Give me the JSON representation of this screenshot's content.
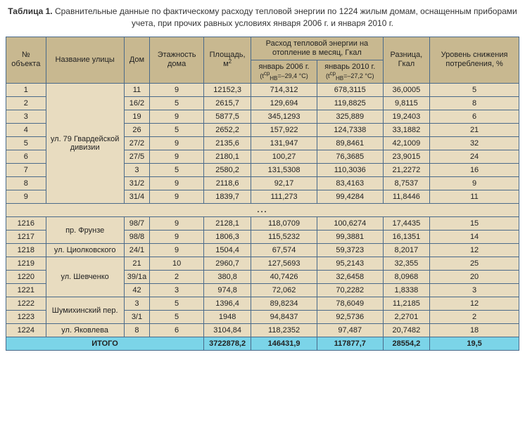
{
  "title_prefix": "Таблица 1.",
  "title_text": " Сравнительные данные по фактическому расходу тепловой энергии по 1224 жилым домам, оснащенным приборами учета, при прочих равных условиях января 2006 г. и января 2010 г.",
  "headers": {
    "obj_no": "№ объекта",
    "street": "Название улицы",
    "house": "Дом",
    "floors": "Этажность дома",
    "area": "Площадь, м",
    "area_sup": "2",
    "heat_group": "Расход тепловой энергии на отопление в месяц, Гкал",
    "jan2006": "январь 2006 г.",
    "jan2006_t": "(t",
    "jan2006_sup": "ср",
    "jan2006_sub": "НВ",
    "jan2006_val": "=–29,4 °С)",
    "jan2010": "январь 2010 г.",
    "jan2010_t": "(t",
    "jan2010_sup": "ср",
    "jan2010_sub": "НВ",
    "jan2010_val": "=–27,2 °С)",
    "diff": "Разница, Гкал",
    "reduction": "Уровень снижения потребления, %"
  },
  "street_groups": [
    {
      "name": "ул. 79 Гвардейской дивизии",
      "span": 9
    },
    {
      "name": "пр. Фрунзе",
      "span": 2
    },
    {
      "name": "ул. Циолковского",
      "span": 1
    },
    {
      "name": "ул. Шевченко",
      "span": 3
    },
    {
      "name": "Шумихинский пер.",
      "span": 2
    },
    {
      "name": "ул. Яковлева",
      "span": 1
    }
  ],
  "rows_top": [
    {
      "n": "1",
      "house": "11",
      "floors": "9",
      "area": "12152,3",
      "j06": "714,312",
      "j10": "678,3115",
      "diff": "36,0005",
      "pct": "5"
    },
    {
      "n": "2",
      "house": "16/2",
      "floors": "5",
      "area": "2615,7",
      "j06": "129,694",
      "j10": "119,8825",
      "diff": "9,8115",
      "pct": "8"
    },
    {
      "n": "3",
      "house": "19",
      "floors": "9",
      "area": "5877,5",
      "j06": "345,1293",
      "j10": "325,889",
      "diff": "19,2403",
      "pct": "6"
    },
    {
      "n": "4",
      "house": "26",
      "floors": "5",
      "area": "2652,2",
      "j06": "157,922",
      "j10": "124,7338",
      "diff": "33,1882",
      "pct": "21"
    },
    {
      "n": "5",
      "house": "27/2",
      "floors": "9",
      "area": "2135,6",
      "j06": "131,947",
      "j10": "89,8461",
      "diff": "42,1009",
      "pct": "32"
    },
    {
      "n": "6",
      "house": "27/5",
      "floors": "9",
      "area": "2180,1",
      "j06": "100,27",
      "j10": "76,3685",
      "diff": "23,9015",
      "pct": "24"
    },
    {
      "n": "7",
      "house": "3",
      "floors": "5",
      "area": "2580,2",
      "j06": "131,5308",
      "j10": "110,3036",
      "diff": "21,2272",
      "pct": "16"
    },
    {
      "n": "8",
      "house": "31/2",
      "floors": "9",
      "area": "2118,6",
      "j06": "92,17",
      "j10": "83,4163",
      "diff": "8,7537",
      "pct": "9"
    },
    {
      "n": "9",
      "house": "31/4",
      "floors": "9",
      "area": "1839,7",
      "j06": "111,273",
      "j10": "99,4284",
      "diff": "11,8446",
      "pct": "11"
    }
  ],
  "rows_bottom": [
    {
      "n": "1216",
      "house": "98/7",
      "floors": "9",
      "area": "2128,1",
      "j06": "118,0709",
      "j10": "100,6274",
      "diff": "17,4435",
      "pct": "15"
    },
    {
      "n": "1217",
      "house": "98/8",
      "floors": "9",
      "area": "1806,3",
      "j06": "115,5232",
      "j10": "99,3881",
      "diff": "16,1351",
      "pct": "14"
    },
    {
      "n": "1218",
      "house": "24/1",
      "floors": "9",
      "area": "1504,4",
      "j06": "67,574",
      "j10": "59,3723",
      "diff": "8,2017",
      "pct": "12"
    },
    {
      "n": "1219",
      "house": "21",
      "floors": "10",
      "area": "2960,7",
      "j06": "127,5693",
      "j10": "95,2143",
      "diff": "32,355",
      "pct": "25"
    },
    {
      "n": "1220",
      "house": "39/1а",
      "floors": "2",
      "area": "380,8",
      "j06": "40,7426",
      "j10": "32,6458",
      "diff": "8,0968",
      "pct": "20"
    },
    {
      "n": "1221",
      "house": "42",
      "floors": "3",
      "area": "974,8",
      "j06": "72,062",
      "j10": "70,2282",
      "diff": "1,8338",
      "pct": "3"
    },
    {
      "n": "1222",
      "house": "3",
      "floors": "5",
      "area": "1396,4",
      "j06": "89,8234",
      "j10": "78,6049",
      "diff": "11,2185",
      "pct": "12"
    },
    {
      "n": "1223",
      "house": "3/1",
      "floors": "5",
      "area": "1948",
      "j06": "94,8437",
      "j10": "92,5736",
      "diff": "2,2701",
      "pct": "2"
    },
    {
      "n": "1224",
      "house": "8",
      "floors": "6",
      "area": "3104,84",
      "j06": "118,2352",
      "j10": "97,487",
      "diff": "20,7482",
      "pct": "18"
    }
  ],
  "total": {
    "label": "ИТОГО",
    "area": "3722878,2",
    "j06": "146431,9",
    "j10": "117877,7",
    "diff": "28554,2",
    "pct": "19,5"
  },
  "ellipsis": "...",
  "colors": {
    "header_bg": "#c8b890",
    "cell_bg": "#e8dcc0",
    "total_bg": "#7bd4e8",
    "border": "#4a6a8a"
  }
}
